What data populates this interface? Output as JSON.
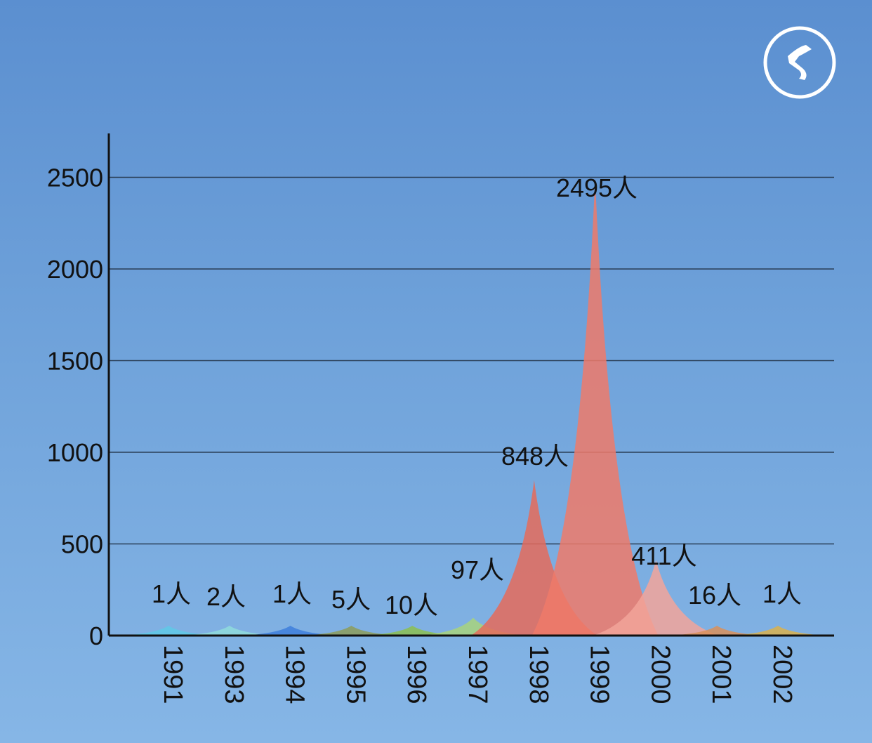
{
  "logo_icon": "music-note-circle-icon",
  "chart_data": {
    "type": "area",
    "title": "",
    "xlabel": "",
    "ylabel": "",
    "ylim": [
      0,
      2700
    ],
    "yticks": [
      0,
      500,
      1000,
      1500,
      2000,
      2500
    ],
    "grid": true,
    "categories": [
      "1991",
      "1993",
      "1994",
      "1995",
      "1996",
      "1997",
      "1998",
      "1999",
      "2000",
      "2001",
      "2002"
    ],
    "values": [
      1,
      2,
      1,
      5,
      10,
      97,
      848,
      2495,
      411,
      16,
      1
    ],
    "data_labels": [
      "1人",
      "2人",
      "1人",
      "5人",
      "10人",
      "97人",
      "848人",
      "2495人",
      "411人",
      "16人",
      "1人"
    ],
    "colors": [
      "#5fc9e6",
      "#8fdcdc",
      "#3e7fdc",
      "#8c9c5a",
      "#8cc050",
      "#a8d47c",
      "#e56b5a",
      "#ef7a6a",
      "#f2a49a",
      "#d9905a",
      "#d9b24e"
    ]
  }
}
